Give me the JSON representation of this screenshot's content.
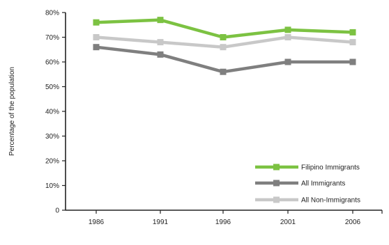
{
  "chart_data": {
    "type": "line",
    "title": "",
    "xlabel": "",
    "ylabel": "Percentage of the population",
    "categories": [
      "1986",
      "1991",
      "1996",
      "2001",
      "2006"
    ],
    "ylim": [
      0,
      80
    ],
    "yticks": [
      "0",
      "10%",
      "20%",
      "30%",
      "40%",
      "50%",
      "60%",
      "70%",
      "80%"
    ],
    "ytick_values": [
      0,
      10,
      20,
      30,
      40,
      50,
      60,
      70,
      80
    ],
    "grid": false,
    "legend_position": "bottom-right",
    "series": [
      {
        "name": "Filipino Immigrants",
        "values": [
          76,
          77,
          70,
          73,
          72
        ],
        "color": "#7cc242"
      },
      {
        "name": "All Immigrants",
        "values": [
          66,
          63,
          56,
          60,
          60
        ],
        "color": "#7f7f7f"
      },
      {
        "name": "All Non-Immigrants",
        "values": [
          70,
          68,
          66,
          70,
          68
        ],
        "color": "#c8c8c8"
      }
    ]
  }
}
